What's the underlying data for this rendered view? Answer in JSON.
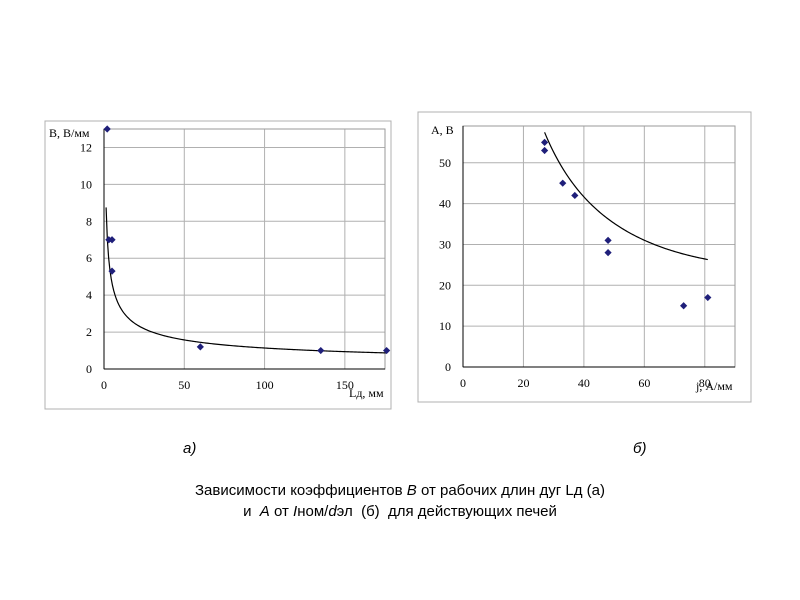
{
  "chart_data": [
    {
      "type": "scatter",
      "ylabel": "B, В/мм",
      "xlabel": "Lд, мм",
      "xlim": [
        0,
        175
      ],
      "ylim": [
        0,
        13
      ],
      "x_ticks": [
        0,
        50,
        100,
        150
      ],
      "y_ticks": [
        0,
        2,
        4,
        6,
        8,
        10,
        12
      ],
      "grid": true,
      "points": [
        {
          "x": 2,
          "y": 13
        },
        {
          "x": 3,
          "y": 7
        },
        {
          "x": 5,
          "y": 7
        },
        {
          "x": 5,
          "y": 5.3
        },
        {
          "x": 60,
          "y": 1.2
        },
        {
          "x": 135,
          "y": 1.0
        },
        {
          "x": 176,
          "y": 1.0
        }
      ],
      "trendline": "power",
      "marker_color": "#1f1f7a",
      "line_color": "#000000"
    },
    {
      "type": "scatter",
      "ylabel": "A, В",
      "xlabel": "j, А/мм",
      "xlim": [
        0,
        90
      ],
      "ylim": [
        0,
        59
      ],
      "x_ticks": [
        0,
        20,
        40,
        60,
        80
      ],
      "y_ticks": [
        0,
        10,
        20,
        30,
        40,
        50
      ],
      "grid": true,
      "points": [
        {
          "x": 27,
          "y": 55
        },
        {
          "x": 27,
          "y": 53
        },
        {
          "x": 33,
          "y": 45
        },
        {
          "x": 37,
          "y": 42
        },
        {
          "x": 48,
          "y": 31
        },
        {
          "x": 48,
          "y": 28
        },
        {
          "x": 73,
          "y": 15
        },
        {
          "x": 81,
          "y": 17
        }
      ],
      "trendline": "smooth",
      "marker_color": "#1f1f7a",
      "line_color": "#000000"
    }
  ],
  "labels": {
    "a": "а)",
    "b": "б)"
  },
  "caption": {
    "l1_p1": "Зависимости коэффициентов ",
    "l1_b": "B",
    "l1_p2": " от рабочих длин дуг Lд (а)",
    "l2_p1": "и  ",
    "l2_a": "A",
    "l2_p2": " от ",
    "l2_i": "I",
    "l2_p3": "ном/",
    "l2_d": "d",
    "l2_p4": "эл  (б)  для действующих печей"
  }
}
